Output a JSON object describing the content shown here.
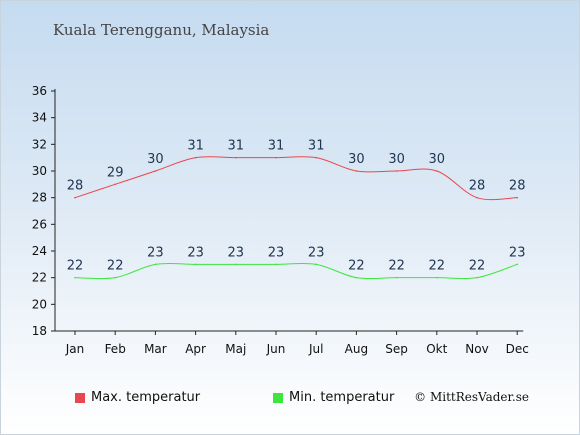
{
  "title": "Kuala Terengganu, Malaysia",
  "copyright": "© MittResVader.se",
  "chart_data": {
    "type": "line",
    "x": [
      "Jan",
      "Feb",
      "Mar",
      "Apr",
      "Maj",
      "Jun",
      "Jul",
      "Aug",
      "Sep",
      "Okt",
      "Nov",
      "Dec"
    ],
    "ylim": [
      18,
      36
    ],
    "yticks": [
      18,
      20,
      22,
      24,
      26,
      28,
      30,
      32,
      34,
      36
    ],
    "grid": false,
    "legend_position": "bottom",
    "series": [
      {
        "name": "Max. temperatur",
        "color": "#e8474d",
        "values": [
          28,
          29,
          30,
          31,
          31,
          31,
          31,
          30,
          30,
          30,
          28,
          28
        ]
      },
      {
        "name": "Min. temperatur",
        "color": "#3ce63c",
        "values": [
          22,
          22,
          23,
          23,
          23,
          23,
          23,
          22,
          22,
          22,
          22,
          23
        ]
      }
    ]
  }
}
